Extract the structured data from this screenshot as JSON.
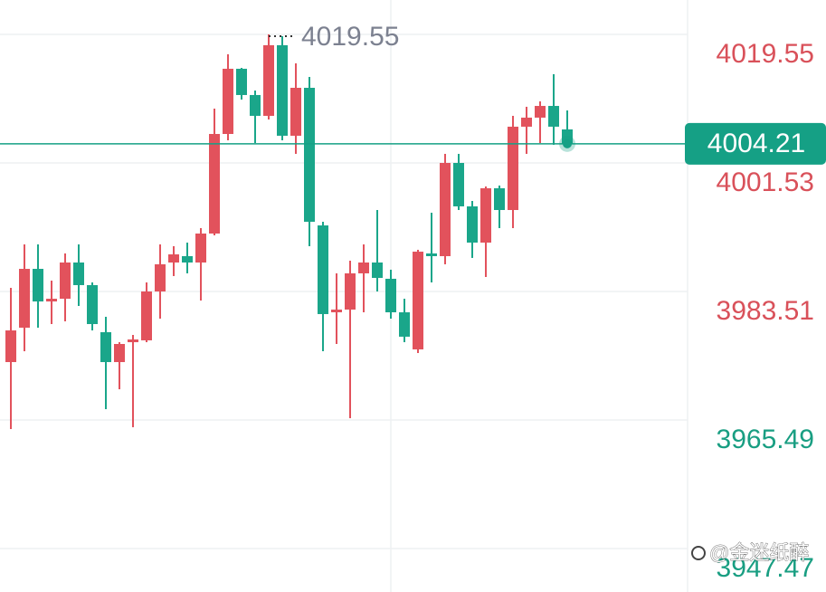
{
  "chart_data": {
    "type": "candlestick",
    "open": [
      3973.61,
      3978.43,
      3986.68,
      3982.11,
      3982.49,
      3987.57,
      3984.4,
      3977.8,
      3973.61,
      3976.4,
      3976.66,
      3983.51,
      3987.57,
      3988.46,
      3987.57,
      3991.63,
      4005.59,
      4014.73,
      4011.05,
      4008.13,
      4018.03,
      4005.34,
      4012.06,
      3992.77,
      3980.59,
      3980.97,
      3986.05,
      3987.57,
      3985.29,
      3980.59,
      3975.39,
      3988.84,
      3988.46,
      4001.53,
      3995.44,
      3990.36,
      3997.98,
      3994.93,
      4006.61,
      4007.88,
      4009.52,
      4006.23
    ],
    "high": [
      3984.02,
      3990.11,
      3990.11,
      3985.03,
      3988.84,
      3990.11,
      3984.78,
      3979.96,
      3976.4,
      3977.42,
      3984.78,
      3990.11,
      3989.86,
      3990.36,
      3992.39,
      4009.14,
      4016.76,
      4014.85,
      4011.68,
      4019.55,
      4019.3,
      4015.49,
      4013.59,
      3993.28,
      3986.05,
      3987.82,
      3990.11,
      3994.93,
      3986.56,
      3982.49,
      3989.35,
      3994.55,
      4002.8,
      4002.8,
      3996.2,
      3998.23,
      3998.36,
      4008.13,
      4009.4,
      4010.16,
      4013.97,
      4008.89
    ],
    "low": [
      3964.22,
      3975.13,
      3978.43,
      3978.94,
      3979.32,
      3981.48,
      3978.05,
      3967.01,
      3969.8,
      3964.48,
      3976.4,
      3979.7,
      3985.67,
      3986.05,
      3982.24,
      3991.38,
      4004.7,
      4010.41,
      4004.32,
      4007.62,
      4004.7,
      4002.8,
      3989.86,
      3975.13,
      3976.15,
      3965.74,
      3980.59,
      3983.51,
      3979.7,
      3976.4,
      3974.88,
      3984.78,
      3987.32,
      3994.93,
      3988.21,
      3985.54,
      3992.39,
      3992.39,
      4002.8,
      4004.32,
      4004.07,
      4003.81
    ],
    "close": [
      3978.05,
      3986.68,
      3982.11,
      3982.49,
      3987.57,
      3984.4,
      3978.94,
      3973.61,
      3976.15,
      3976.78,
      3983.51,
      3987.32,
      3988.71,
      3987.57,
      3991.63,
      4005.59,
      4014.73,
      4011.05,
      4008.13,
      4018.03,
      4005.34,
      4012.06,
      3993.28,
      3980.34,
      3980.97,
      3986.05,
      3987.57,
      3985.41,
      3980.59,
      3977.17,
      3989.09,
      3988.46,
      4001.53,
      3995.44,
      3990.36,
      3997.98,
      3994.93,
      4006.61,
      4007.88,
      4009.52,
      4006.61,
      4004.21
    ],
    "up_color": "#e2525c",
    "down_color": "#1aa68a",
    "ylim": [
      3941.38,
      4024.37
    ],
    "yticks": [
      4019.55,
      4001.53,
      3983.51,
      3965.49,
      3947.47
    ],
    "ytick_colors": [
      "#d9515a",
      "#d9515a",
      "#d9515a",
      "#199e82",
      "#199e82"
    ],
    "grid": true,
    "max_label": 4019.55,
    "last_price": 4004.21,
    "last_price_color": "#15a085",
    "watermark": "@金迷纸醉"
  }
}
